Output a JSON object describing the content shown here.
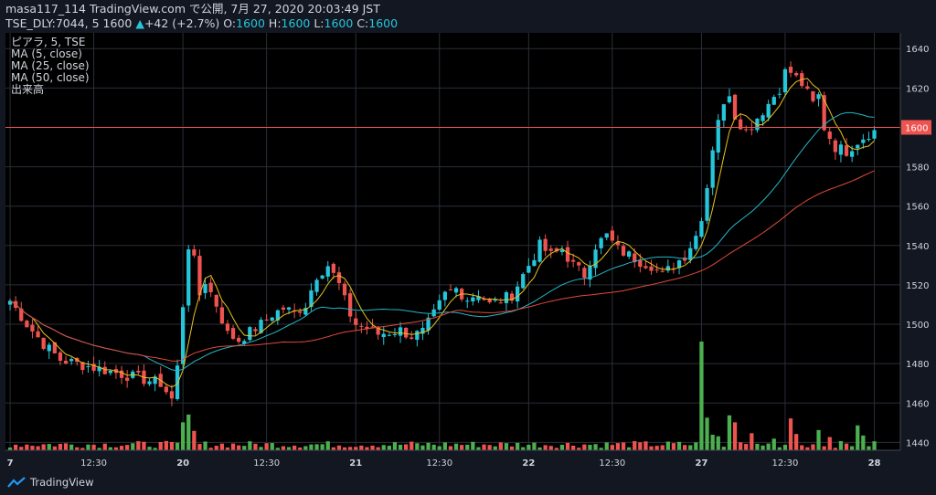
{
  "header": {
    "line1": "masa117_114 TradingView.com で公開, 7月 27, 2020 20:03:49 JST",
    "symbol": "TSE_DLY:7044, 5 1600",
    "change": "+42 (+2.7%)",
    "o_label": "O:",
    "o_value": "1600",
    "h_label": "H:",
    "h_value": "1600",
    "l_label": "L:",
    "l_value": "1600",
    "c_label": "C:",
    "c_value": "1600"
  },
  "legend": {
    "title": "ピアラ, 5, TSE",
    "ma5": "MA (5, close)",
    "ma25": "MA (25, close)",
    "ma50": "MA (50, close)",
    "volume": "出来高"
  },
  "brand": {
    "name": "TradingView",
    "logo_icon": "tradingview-logo-icon"
  },
  "colors": {
    "background": "#000000",
    "up": "#26a69a",
    "down": "#ef5350",
    "candle_up": "#26c6da",
    "candle_down": "#ef5350",
    "ma5": "#e7c21d",
    "ma25": "#26b6c8",
    "ma50": "#e04a3a",
    "price_line": "#ef5350",
    "volume_up": "#4caf50",
    "volume_down": "#ef5350"
  },
  "chart_data": {
    "type": "candlestick",
    "interval": "5",
    "ylim": [
      1436,
      1648
    ],
    "y_ticks": [
      1440,
      1460,
      1480,
      1500,
      1520,
      1540,
      1560,
      1580,
      1600,
      1620,
      1640
    ],
    "last_price_label": "1600",
    "last_price": 1600,
    "x_ticks": [
      {
        "label": "7",
        "bar": 0
      },
      {
        "label": "12:30",
        "bar": 15
      },
      {
        "label": "20",
        "bar": 31
      },
      {
        "label": "12:30",
        "bar": 46
      },
      {
        "label": "21",
        "bar": 62
      },
      {
        "label": "12:30",
        "bar": 77
      },
      {
        "label": "22",
        "bar": 93
      },
      {
        "label": "12:30",
        "bar": 108
      },
      {
        "label": "27",
        "bar": 124
      },
      {
        "label": "12:30",
        "bar": 139
      },
      {
        "label": "28",
        "bar": 155
      }
    ],
    "close_anchors": [
      [
        0,
        1512
      ],
      [
        3,
        1500
      ],
      [
        6,
        1490
      ],
      [
        9,
        1482
      ],
      [
        12,
        1480
      ],
      [
        15,
        1478
      ],
      [
        18,
        1476
      ],
      [
        21,
        1474
      ],
      [
        24,
        1472
      ],
      [
        27,
        1470
      ],
      [
        29,
        1462
      ],
      [
        30,
        1478
      ],
      [
        31,
        1510
      ],
      [
        32,
        1540
      ],
      [
        33,
        1532
      ],
      [
        34,
        1515
      ],
      [
        35,
        1522
      ],
      [
        37,
        1510
      ],
      [
        39,
        1495
      ],
      [
        41,
        1492
      ],
      [
        43,
        1496
      ],
      [
        45,
        1500
      ],
      [
        47,
        1505
      ],
      [
        49,
        1508
      ],
      [
        51,
        1506
      ],
      [
        53,
        1510
      ],
      [
        55,
        1525
      ],
      [
        57,
        1530
      ],
      [
        59,
        1520
      ],
      [
        60,
        1512
      ],
      [
        61,
        1505
      ],
      [
        62,
        1500
      ],
      [
        64,
        1498
      ],
      [
        66,
        1495
      ],
      [
        68,
        1496
      ],
      [
        70,
        1497
      ],
      [
        72,
        1494
      ],
      [
        74,
        1496
      ],
      [
        76,
        1505
      ],
      [
        78,
        1515
      ],
      [
        80,
        1518
      ],
      [
        82,
        1513
      ],
      [
        84,
        1516
      ],
      [
        86,
        1510
      ],
      [
        88,
        1512
      ],
      [
        90,
        1515
      ],
      [
        92,
        1525
      ],
      [
        93,
        1530
      ],
      [
        95,
        1540
      ],
      [
        97,
        1535
      ],
      [
        99,
        1538
      ],
      [
        101,
        1530
      ],
      [
        103,
        1525
      ],
      [
        105,
        1540
      ],
      [
        107,
        1545
      ],
      [
        109,
        1538
      ],
      [
        111,
        1535
      ],
      [
        113,
        1532
      ],
      [
        115,
        1530
      ],
      [
        117,
        1525
      ],
      [
        119,
        1530
      ],
      [
        121,
        1535
      ],
      [
        123,
        1545
      ],
      [
        124,
        1555
      ],
      [
        125,
        1570
      ],
      [
        126,
        1590
      ],
      [
        127,
        1605
      ],
      [
        128,
        1610
      ],
      [
        129,
        1618
      ],
      [
        130,
        1606
      ],
      [
        132,
        1598
      ],
      [
        134,
        1605
      ],
      [
        136,
        1612
      ],
      [
        138,
        1620
      ],
      [
        139,
        1628
      ],
      [
        140,
        1628
      ],
      [
        142,
        1622
      ],
      [
        144,
        1612
      ],
      [
        145,
        1616
      ],
      [
        146,
        1600
      ],
      [
        147,
        1595
      ],
      [
        148,
        1590
      ],
      [
        150,
        1588
      ],
      [
        152,
        1593
      ],
      [
        154,
        1597
      ],
      [
        155,
        1598
      ]
    ],
    "volume_spikes": [
      [
        31,
        3.6
      ],
      [
        32,
        4.6
      ],
      [
        33,
        2.5
      ],
      [
        124,
        14
      ],
      [
        125,
        4.2
      ],
      [
        126,
        2.0
      ],
      [
        127,
        1.8
      ],
      [
        129,
        4.5
      ],
      [
        130,
        3.6
      ],
      [
        133,
        2.2
      ],
      [
        137,
        1.5
      ],
      [
        140,
        4.1
      ],
      [
        141,
        2.1
      ],
      [
        145,
        2.6
      ],
      [
        147,
        1.7
      ],
      [
        152,
        3.2
      ],
      [
        153,
        1.9
      ]
    ],
    "ma_periods": [
      5,
      25,
      50
    ]
  }
}
